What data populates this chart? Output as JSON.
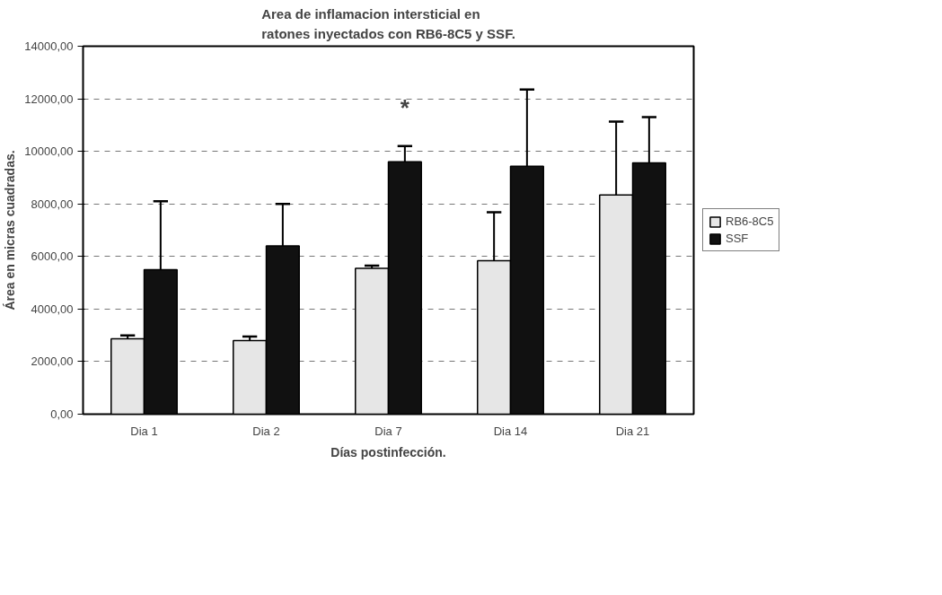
{
  "chart_data": {
    "type": "bar",
    "title": "Area de inflamacion intersticial en\nratones inyectados con RB6-8C5 y SSF.",
    "xlabel": "Días postinfección.",
    "ylabel": "Área en micras cuadradas.",
    "categories": [
      "Dia 1",
      "Dia 2",
      "Dia 7",
      "Dia 14",
      "Dia 21"
    ],
    "series": [
      {
        "name": "RB6-8C5",
        "color": "#e6e6e6",
        "values": [
          2870,
          2800,
          5550,
          5840,
          8340
        ],
        "errors": [
          [
            2870,
            3000
          ],
          [
            2800,
            2950
          ],
          [
            5550,
            5650
          ],
          [
            5840,
            7680
          ],
          [
            8340,
            11130
          ]
        ]
      },
      {
        "name": "SSF",
        "color": "#111111",
        "values": [
          5500,
          6400,
          9600,
          9430,
          9560
        ],
        "errors": [
          [
            5500,
            8100
          ],
          [
            6400,
            8000
          ],
          [
            9600,
            10200
          ],
          [
            9430,
            12350
          ],
          [
            9560,
            11300
          ]
        ]
      }
    ],
    "ylim": [
      0,
      14000
    ],
    "yticks": [
      {
        "value": 0,
        "label": "0,00"
      },
      {
        "value": 2000,
        "label": "2000,00"
      },
      {
        "value": 4000,
        "label": "4000,00"
      },
      {
        "value": 6000,
        "label": "6000,00"
      },
      {
        "value": 8000,
        "label": "8000,00"
      },
      {
        "value": 10000,
        "label": "10000,00"
      },
      {
        "value": 12000,
        "label": "12000,00"
      },
      {
        "value": 14000,
        "label": "14000,00"
      }
    ],
    "grid": "y",
    "line_style": "dashed",
    "legend": "right",
    "annotations": [
      {
        "text": "*",
        "x": "Dia 7",
        "y": 9600
      }
    ]
  }
}
